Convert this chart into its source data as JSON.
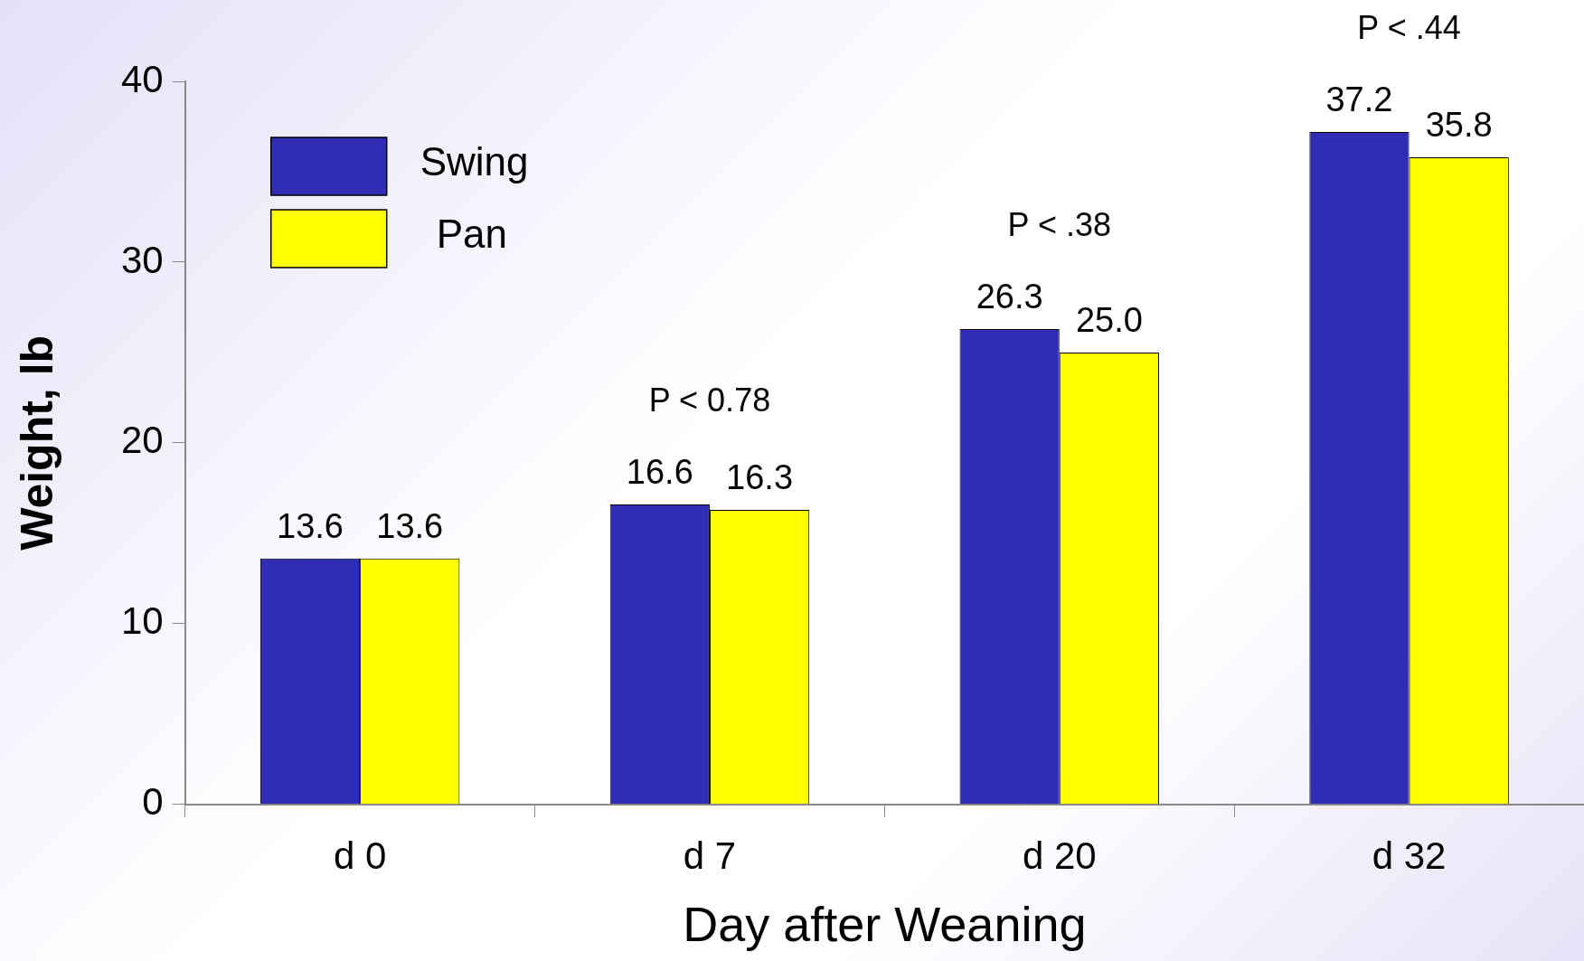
{
  "chart_data": {
    "type": "bar",
    "xlabel": "Day after Weaning",
    "ylabel": "Weight, lb",
    "categories": [
      "d 0",
      "d 7",
      "d 20",
      "d 32"
    ],
    "series": [
      {
        "name": "Swing",
        "color": "#2e2db4",
        "values": [
          13.6,
          16.6,
          26.3,
          37.2
        ],
        "value_labels": [
          "13.6",
          "16.6",
          "26.3",
          "37.2"
        ]
      },
      {
        "name": "Pan",
        "color": "#ffff00",
        "values": [
          13.6,
          16.3,
          25.0,
          35.8
        ],
        "value_labels": [
          "13.6",
          "16.3",
          "25.0",
          "35.8"
        ]
      }
    ],
    "ylim": [
      0,
      40
    ],
    "yticks": [
      0,
      10,
      20,
      30,
      40
    ],
    "grid": false,
    "legend": "top left",
    "annotations": [
      "P < 0.78",
      "P < .38",
      "P < .44"
    ]
  }
}
